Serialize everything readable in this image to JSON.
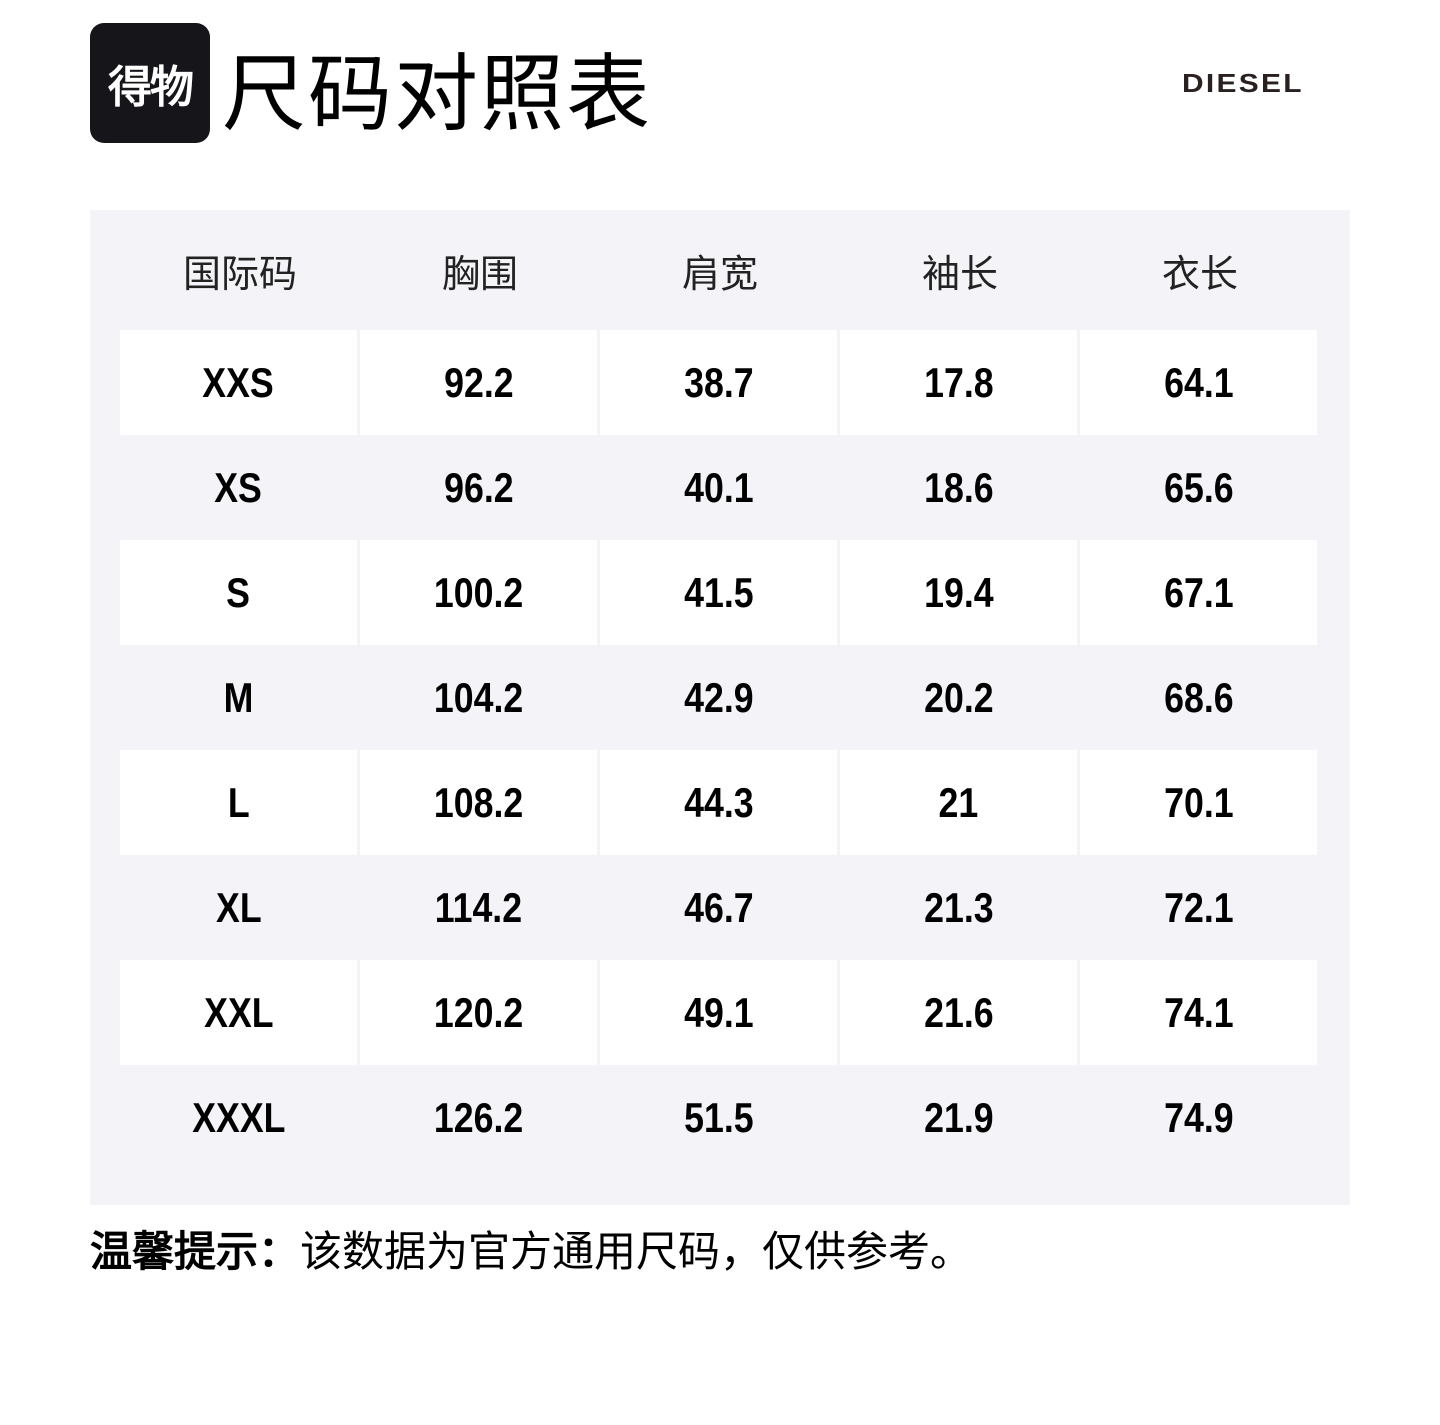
{
  "header": {
    "logo_text": "得物",
    "title": "尺码对照表",
    "brand": "DIESEL"
  },
  "table": {
    "columns": [
      "国际码",
      "胸围",
      "肩宽",
      "袖长",
      "衣长"
    ],
    "rows": [
      [
        "XXS",
        "92.2",
        "38.7",
        "17.8",
        "64.1"
      ],
      [
        "XS",
        "96.2",
        "40.1",
        "18.6",
        "65.6"
      ],
      [
        "S",
        "100.2",
        "41.5",
        "19.4",
        "67.1"
      ],
      [
        "M",
        "104.2",
        "42.9",
        "20.2",
        "68.6"
      ],
      [
        "L",
        "108.2",
        "44.3",
        "21",
        "70.1"
      ],
      [
        "XL",
        "114.2",
        "46.7",
        "21.3",
        "72.1"
      ],
      [
        "XXL",
        "120.2",
        "49.1",
        "21.6",
        "74.1"
      ],
      [
        "XXXL",
        "126.2",
        "51.5",
        "21.9",
        "74.9"
      ]
    ]
  },
  "footer": {
    "tip_label": "温馨提示：",
    "tip_text": "该数据为官方通用尺码，仅供参考。"
  }
}
